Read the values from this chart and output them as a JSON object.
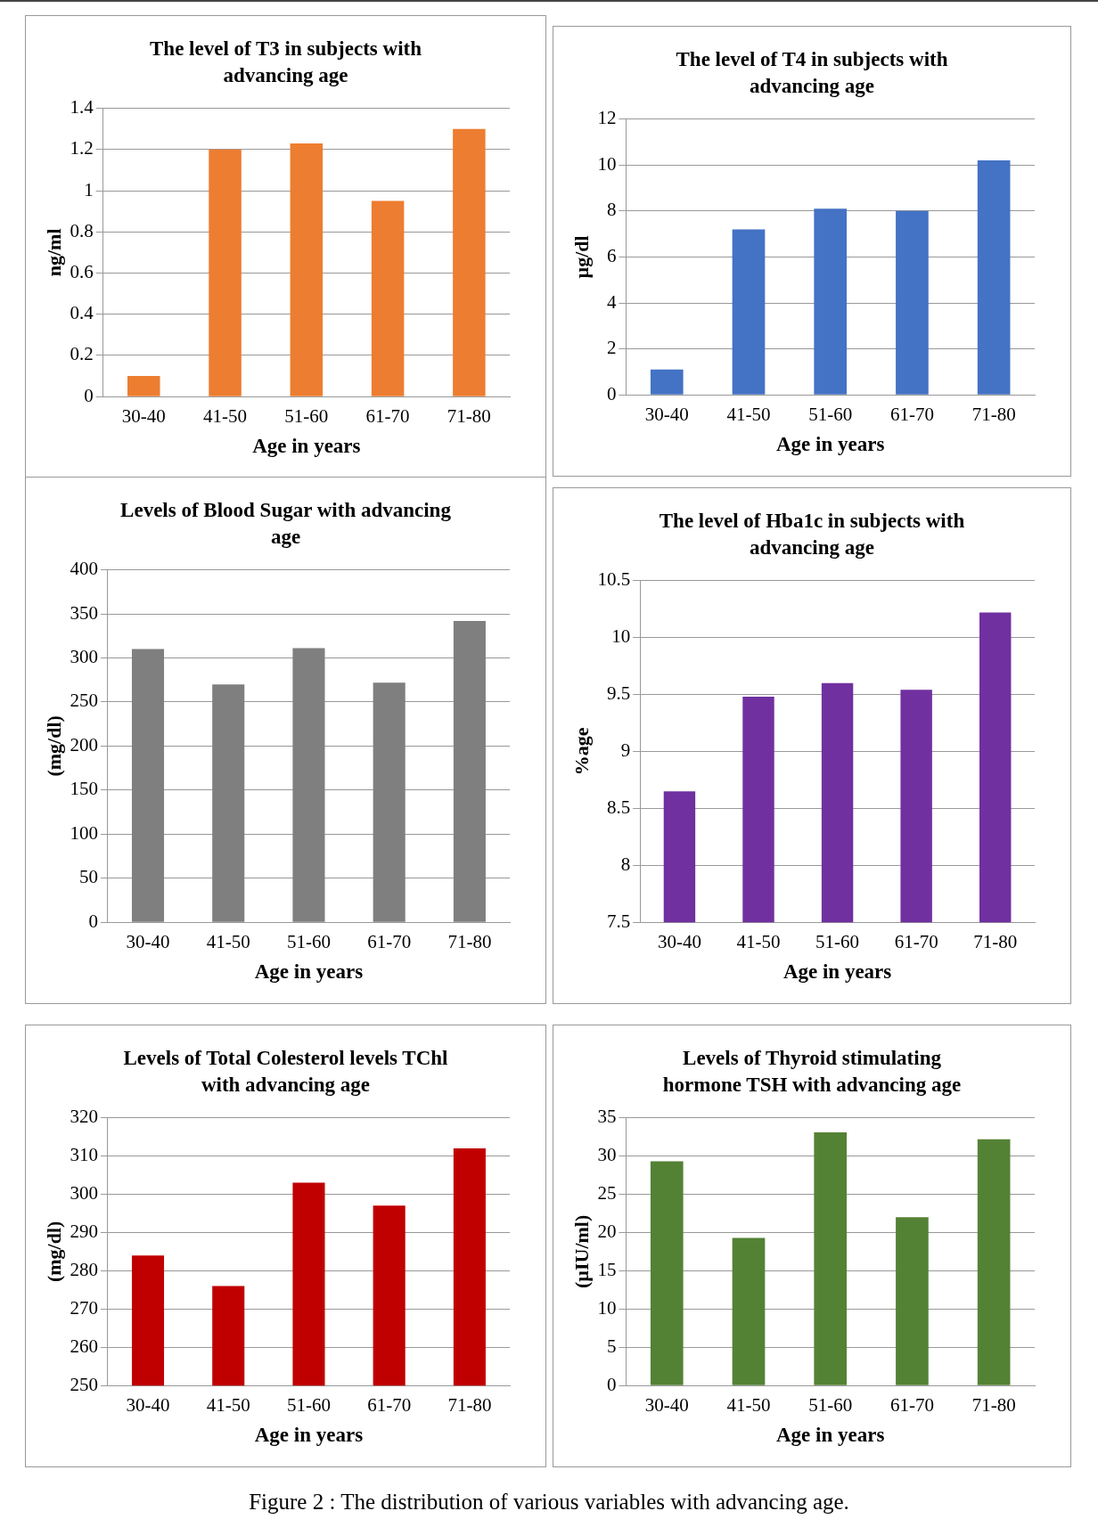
{
  "chart_data": [
    {
      "type": "bar",
      "title": "The level of T3 in subjects with advancing age",
      "xlabel": "Age in years",
      "ylabel": "ng/ml",
      "categories": [
        "30-40",
        "41-50",
        "51-60",
        "61-70",
        "71-80"
      ],
      "values": [
        0.1,
        1.2,
        1.23,
        0.95,
        1.3
      ],
      "color": "#ed7d31",
      "ylim": [
        0,
        1.4
      ],
      "yticks": [
        0,
        0.2,
        0.4,
        0.6,
        0.8,
        1,
        1.2,
        1.4
      ],
      "grid": "y",
      "legend": false
    },
    {
      "type": "bar",
      "title": "The level of T4 in subjects with advancing age",
      "xlabel": "Age in years",
      "ylabel": "µg/dl",
      "categories": [
        "30-40",
        "41-50",
        "51-60",
        "61-70",
        "71-80"
      ],
      "values": [
        1.1,
        7.2,
        8.1,
        8.0,
        10.2
      ],
      "color": "#4472c4",
      "ylim": [
        0,
        12
      ],
      "yticks": [
        0,
        2,
        4,
        6,
        8,
        10,
        12
      ],
      "grid": "y",
      "legend": false
    },
    {
      "type": "bar",
      "title": "Levels of Blood Sugar with advancing age",
      "xlabel": "Age in years",
      "ylabel": "(mg/dl)",
      "categories": [
        "30-40",
        "41-50",
        "51-60",
        "61-70",
        "71-80"
      ],
      "values": [
        310,
        270,
        311,
        272,
        342
      ],
      "color": "#7f7f7f",
      "ylim": [
        0,
        400
      ],
      "yticks": [
        0,
        50,
        100,
        150,
        200,
        250,
        300,
        350,
        400
      ],
      "grid": "y",
      "legend": false
    },
    {
      "type": "bar",
      "title": "The level of Hba1c in subjects with advancing age",
      "xlabel": "Age in years",
      "ylabel": "%age",
      "categories": [
        "30-40",
        "41-50",
        "51-60",
        "61-70",
        "71-80"
      ],
      "values": [
        8.65,
        9.48,
        9.6,
        9.54,
        10.22
      ],
      "color": "#7030a0",
      "ylim": [
        7.5,
        10.5
      ],
      "yticks": [
        7.5,
        8,
        8.5,
        9,
        9.5,
        10,
        10.5
      ],
      "grid": "y",
      "legend": false
    },
    {
      "type": "bar",
      "title": "Levels of Total Colesterol levels TChl with advancing age",
      "xlabel": "Age in years",
      "ylabel": "(mg/dl)",
      "categories": [
        "30-40",
        "41-50",
        "51-60",
        "61-70",
        "71-80"
      ],
      "values": [
        284,
        276,
        303,
        297,
        312
      ],
      "color": "#c00000",
      "ylim": [
        250,
        320
      ],
      "yticks": [
        250,
        260,
        270,
        280,
        290,
        300,
        310,
        320
      ],
      "grid": "y",
      "legend": false
    },
    {
      "type": "bar",
      "title": "Levels of Thyroid stimulating hormone TSH with advancing age",
      "xlabel": "Age in years",
      "ylabel": "(µIU/ml)",
      "categories": [
        "30-40",
        "41-50",
        "51-60",
        "61-70",
        "71-80"
      ],
      "values": [
        29.3,
        19.3,
        33.1,
        22,
        32.2
      ],
      "color": "#548235",
      "ylim": [
        0,
        35
      ],
      "yticks": [
        0,
        5,
        10,
        15,
        20,
        25,
        30,
        35
      ],
      "grid": "y",
      "legend": false,
      "annotations": [
        "Figure 2 : The distribution of various variables with advancing age."
      ]
    }
  ]
}
